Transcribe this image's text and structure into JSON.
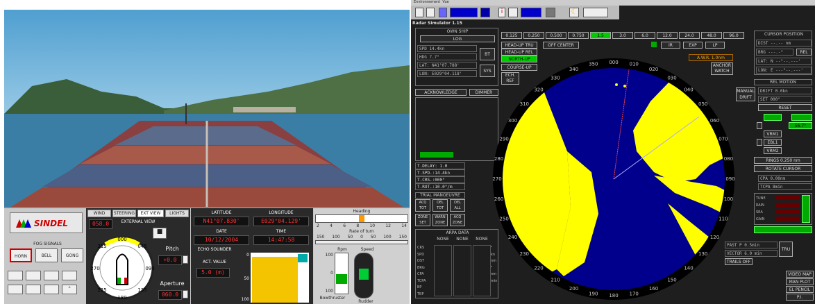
{
  "sim": {
    "logo": "SINDEL",
    "fog_signals": {
      "title": "FOG SIGNALS",
      "horn": "HORN",
      "bell": "BELL",
      "gong": "GONG"
    },
    "tabs": [
      "WIND",
      "STEERING",
      "EXT VIEW",
      "LIGHTS"
    ],
    "external_view": "EXTERNAL VIEW",
    "view_angle": "058.0",
    "compass_marks": [
      "000",
      "045",
      "090",
      "135",
      "180",
      "225",
      "270",
      "315"
    ],
    "pitch_label": "Pitch",
    "pitch_value": "+0.0",
    "aperture_label": "Aperture",
    "aperture_value": "060.0",
    "latitude_label": "LATITUDE",
    "latitude": "N41°07.830'",
    "longitude_label": "LONGITUDE",
    "longitude": "E029°04.129'",
    "date_label": "DATE",
    "date": "10/12/2004",
    "time_label": "TIME",
    "time": "14:47:58",
    "echo_label": "ECHO SOUNDER",
    "act_value_label": "ACT. VALUE",
    "act_value": "5.0 (m)",
    "echo_ticks": [
      "0",
      "50",
      "100"
    ],
    "heading_label": "Heading",
    "heading_ticks": [
      "2",
      "4",
      "6",
      "8",
      "10",
      "12",
      "14"
    ],
    "rot_label": "Rate of turn",
    "rot_ticks": [
      "150",
      "100",
      "50",
      "0",
      "50",
      "100",
      "150"
    ],
    "rpm_label": "Rpm",
    "speed_label": "Speed",
    "rpm_ticks": [
      "100",
      "0",
      "100"
    ],
    "bowthruster_label": "Bowthruster",
    "rudder_label": "Rudder"
  },
  "radar": {
    "window_menu": [
      "Environnement",
      "Vue"
    ],
    "title": "Radar Simulator 1.15",
    "own_ship": {
      "title": "OWN SHIP",
      "mode": "LOG",
      "spd": "SPD  14.4kn",
      "hdg": "HDG  7.7°",
      "lat": "LAT: N41°07.788'",
      "lon": "LON: E029°04.118'",
      "bt": "BT",
      "sys": "SYS"
    },
    "ranges": [
      "0.125",
      "0.250",
      "0.500",
      "0.750",
      "1.5",
      "3.0",
      "6.0",
      "12.0",
      "24.0",
      "48.0",
      "96.0"
    ],
    "ranges_active": "1.5",
    "modes": {
      "head_up_tru": "HEAD-UP TRU",
      "off_center": "OFF CENTER",
      "head_up_rel": "HEAD-UP REL",
      "north_up": "NORTH-UP",
      "course_up": "COURSE-UP",
      "ech_ref": "ECH. REF"
    },
    "filters": [
      "IR",
      "EXP",
      "LP"
    ],
    "anchor": "ANCHOR WATCH",
    "awr": "A.W.R. 1.0nm",
    "acknowledge": "ACKNOWLEDGE",
    "dimmer": "DIMMER",
    "delay": {
      "d1": "T.DELAY: 1.0",
      "d2": "T.SPD.:14.4kn",
      "d3": "T.CRS.:000°",
      "d4": "T.ROT.:10.0°/m"
    },
    "trial": {
      "title": "TRIAL MANOEUVRE",
      "b": [
        "ACQ TOT",
        "DEL TOT",
        "DEL ALL",
        "ZONE SET",
        "WARN ZONE",
        "ACQ ZONE"
      ]
    },
    "arpa": {
      "title": "ARPA DATA",
      "cols": [
        "NONE",
        "NONE",
        "NONE"
      ],
      "rows": [
        "CRS",
        "SPD",
        "DST",
        "BRG",
        "CPA",
        "TCPA",
        "BP",
        "TBP"
      ],
      "units": [
        "°",
        "kn",
        "nm",
        "°",
        "nm",
        "min",
        "",
        ""
      ]
    },
    "bearings": [
      "350",
      "000",
      "010",
      "020",
      "030",
      "040",
      "050",
      "060",
      "070",
      "080",
      "090",
      "100",
      "110",
      "120",
      "130",
      "140",
      "150",
      "160",
      "170",
      "180",
      "190",
      "200",
      "210",
      "220",
      "230",
      "240",
      "250",
      "260",
      "270",
      "280",
      "290",
      "300",
      "310",
      "320",
      "330",
      "340"
    ],
    "cursor": {
      "title": "CURSOR POSITION",
      "dist": "DIST  --.-- nm",
      "brg": "BRG  ---.-°",
      "lat": "LAT: N  --°--.---'",
      "lon": "LON: E  ---°--.---'",
      "rel": "REL"
    },
    "rel_motion": {
      "title": "REL MOTION",
      "manual": "MANUAL DRIFT",
      "drift": "DRIFT  0.0kn",
      "set": "SET  000°",
      "reset": "RESET"
    },
    "vrm": {
      "vrm1": "VRM1",
      "ebl1": "EBL1",
      "vrm2": "VRM2",
      "value": "56.7°"
    },
    "rings": "RINGS 0.250 nm",
    "rotate": "ROTATE CURSOR",
    "cpa": "CPA  0.00nm",
    "tcpa": "TCPA  8min",
    "gains": [
      "TUNE",
      "RAIN",
      "SEA",
      "GAIN"
    ],
    "past": "PAST P  0.5min",
    "vector": "VECTOR  6.0 min",
    "trails": "TRAILS OFF",
    "tru": "TRU",
    "side_btns": [
      "VIDEO MAP",
      "MAN PLOT",
      "EL PENCIL",
      "P.I."
    ]
  }
}
